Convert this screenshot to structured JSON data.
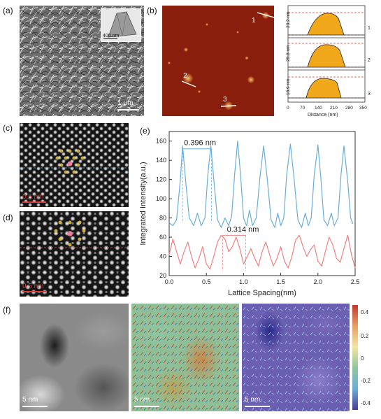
{
  "panels": {
    "a": {
      "label": "(a)",
      "scale": "1 μm",
      "inset_scale": "400 nm"
    },
    "b": {
      "label": "(b)",
      "points": [
        "1",
        "2",
        "3"
      ],
      "profiles": [
        {
          "index": "1",
          "height": "23.2 nm"
        },
        {
          "index": "2",
          "height": "28.8 nm"
        },
        {
          "index": "3",
          "height": "18.9 nm"
        }
      ],
      "xlabel": "Distance (nm)",
      "xticks": [
        "0",
        "70",
        "140",
        "210",
        "280",
        "350"
      ]
    },
    "c": {
      "label": "(c)",
      "scale": "0.5 nm"
    },
    "d": {
      "label": "(d)",
      "scale": "0.5 nm"
    },
    "e": {
      "label": "(e)"
    },
    "f": {
      "label": "(f)",
      "scales": [
        "5 nm",
        "5 nm",
        "5 nm"
      ],
      "colorbar_ticks": [
        "0.4",
        "0.2",
        "0",
        "-0.2",
        "-0.4"
      ]
    }
  },
  "chart_data": {
    "type": "line",
    "xlabel": "Lattice Spacing(nm)",
    "ylabel": "Integrated Intensity(a.u.)",
    "xlim": [
      0.0,
      2.5
    ],
    "ylim": [
      20,
      170
    ],
    "xticks": [
      "0.0",
      "0.5",
      "1.0",
      "1.5",
      "2.0",
      "2.5"
    ],
    "yticks": [
      "20",
      "40",
      "60",
      "80",
      "100",
      "120",
      "140",
      "160"
    ],
    "series": [
      {
        "color": "#6aaed6",
        "x": [
          0.0,
          0.05,
          0.1,
          0.15,
          0.18,
          0.22,
          0.27,
          0.33,
          0.38,
          0.43,
          0.48,
          0.52,
          0.56,
          0.6,
          0.65,
          0.7,
          0.75,
          0.8,
          0.84,
          0.88,
          0.92,
          0.96,
          1.0,
          1.04,
          1.08,
          1.12,
          1.17,
          1.22,
          1.27,
          1.32,
          1.37,
          1.42,
          1.46,
          1.5,
          1.54,
          1.58,
          1.63,
          1.68,
          1.73,
          1.78,
          1.83,
          1.87,
          1.91,
          1.95,
          2.0,
          2.04,
          2.08,
          2.13,
          2.18,
          2.22,
          2.27,
          2.31,
          2.35,
          2.4,
          2.44,
          2.47
        ],
        "y": [
          75,
          72,
          78,
          120,
          155,
          120,
          80,
          72,
          85,
          72,
          80,
          125,
          155,
          120,
          78,
          70,
          80,
          72,
          82,
          125,
          160,
          125,
          80,
          72,
          88,
          72,
          80,
          122,
          155,
          120,
          78,
          70,
          85,
          72,
          80,
          125,
          157,
          120,
          78,
          70,
          85,
          72,
          80,
          125,
          156,
          120,
          78,
          72,
          85,
          72,
          80,
          125,
          155,
          118,
          80,
          74
        ]
      },
      {
        "color": "#f08080",
        "x": [
          0.0,
          0.05,
          0.1,
          0.15,
          0.2,
          0.25,
          0.3,
          0.35,
          0.4,
          0.45,
          0.5,
          0.55,
          0.6,
          0.65,
          0.7,
          0.75,
          0.8,
          0.85,
          0.9,
          0.95,
          1.0,
          1.05,
          1.1,
          1.15,
          1.2,
          1.25,
          1.3,
          1.35,
          1.4,
          1.45,
          1.5,
          1.55,
          1.6,
          1.65,
          1.7,
          1.75,
          1.8,
          1.85,
          1.9,
          1.95,
          2.0,
          2.05,
          2.1,
          2.15,
          2.2,
          2.25,
          2.3,
          2.35,
          2.4,
          2.45,
          2.5
        ],
        "y": [
          42,
          58,
          45,
          32,
          45,
          55,
          40,
          28,
          38,
          50,
          32,
          27,
          40,
          55,
          62,
          58,
          45,
          50,
          60,
          48,
          32,
          40,
          48,
          38,
          30,
          45,
          55,
          42,
          30,
          38,
          50,
          35,
          28,
          40,
          57,
          62,
          50,
          40,
          47,
          52,
          35,
          30,
          45,
          60,
          52,
          38,
          34,
          48,
          62,
          42,
          28
        ]
      }
    ],
    "annotations": [
      {
        "text": "0.396 nm",
        "x1": 0.18,
        "x2": 0.57
      },
      {
        "text": "0.314 nm",
        "x1": 0.72,
        "x2": 1.03
      }
    ]
  }
}
